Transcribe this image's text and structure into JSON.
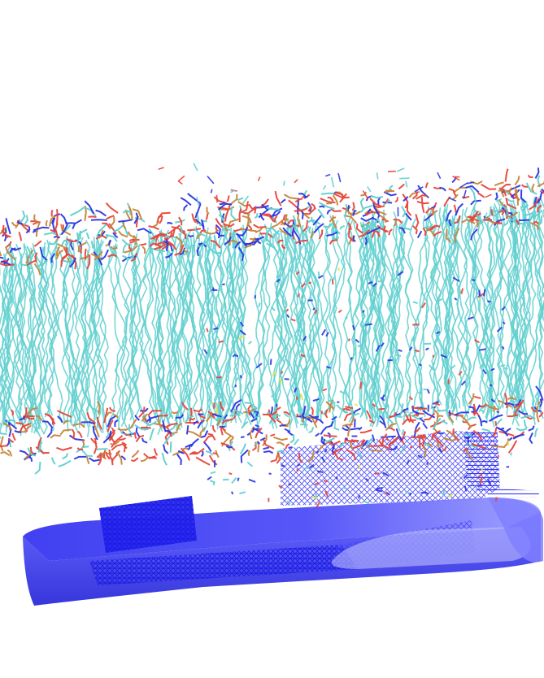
{
  "scene": {
    "background": "#ffffff",
    "colors": {
      "lipid_tails": "#5fcfcf",
      "oxygen": "#e8433a",
      "nitrogen": "#2a36e0",
      "phosphorus": "#c8843a",
      "sulfur": "#e6e64a",
      "mesh_dark": "#2020e8",
      "mesh_light": "#8c8cff"
    },
    "objects": [
      {
        "id": "lipid-bilayer",
        "render_style": "licorice"
      },
      {
        "id": "protein-surface",
        "render_style": "wireframe-mesh"
      }
    ]
  }
}
